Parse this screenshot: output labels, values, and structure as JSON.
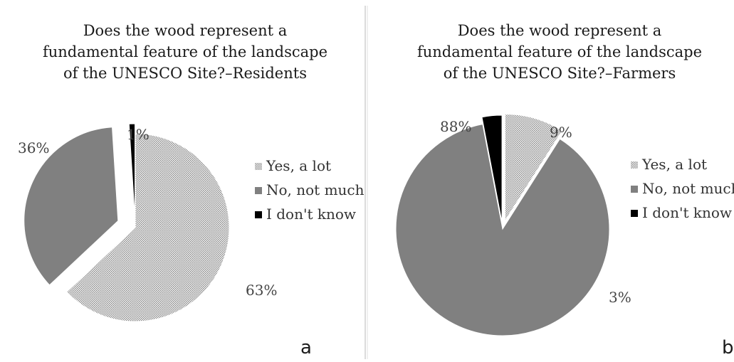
{
  "chart_data": [
    {
      "type": "pie",
      "panel_label": "a",
      "title_lines": [
        "Does the wood represent a",
        "fundamental feature of the landscape",
        "of the UNESCO Site?–Residents"
      ],
      "categories": [
        "Yes, a lot",
        "No, not much",
        "I don't know"
      ],
      "values": [
        63,
        36,
        1
      ],
      "labels": [
        "63%",
        "36%",
        "1%"
      ],
      "exploded": true,
      "legend_placement": "right"
    },
    {
      "type": "pie",
      "panel_label": "b",
      "title_lines": [
        "Does the wood represent a",
        "fundamental feature of the landscape",
        "of the UNESCO Site?–Farmers"
      ],
      "categories": [
        "Yes, a lot",
        "No, not much",
        "I don't know"
      ],
      "values": [
        9,
        88,
        3
      ],
      "labels": [
        "9%",
        "88%",
        "3%"
      ],
      "exploded": true,
      "legend_placement": "right"
    }
  ],
  "colors": {
    "yes_a_lot": "#cfcfcf",
    "no_not_much": "#808080",
    "i_dont_know": "#000000",
    "divider": "#cfcfcf"
  }
}
